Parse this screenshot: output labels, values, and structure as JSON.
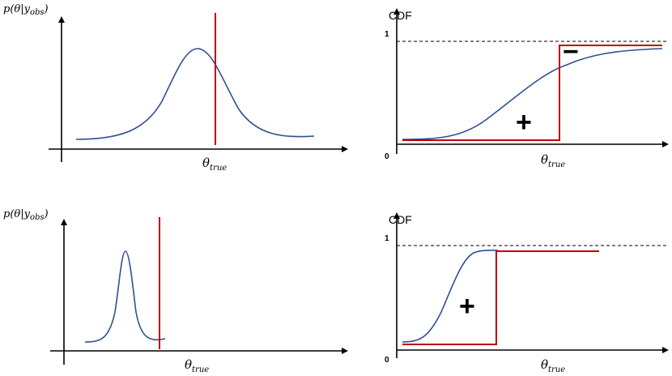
{
  "panels": {
    "top_left": {
      "ylabel_main": "p(θ|y",
      "ylabel_sub": "obs",
      "ylabel_close": ")",
      "xlabel_main": "θ",
      "xlabel_sub": "true"
    },
    "top_right": {
      "ylabel": "CDF",
      "tick_one": "1",
      "tick_zero": "0",
      "xlabel_main": "θ",
      "xlabel_sub": "true",
      "sign_minus": "−",
      "sign_plus": "+"
    },
    "bottom_left": {
      "ylabel_main": "p(θ|y",
      "ylabel_sub": "obs",
      "ylabel_close": ")",
      "xlabel_main": "θ",
      "xlabel_sub": "true"
    },
    "bottom_right": {
      "ylabel": "CDF",
      "tick_one": "1",
      "tick_zero": "0",
      "xlabel_main": "θ",
      "xlabel_sub": "true",
      "sign_plus": "+"
    }
  },
  "colors": {
    "curve": "#2f4f8f",
    "marker": "#c00000",
    "axis": "#000000"
  }
}
